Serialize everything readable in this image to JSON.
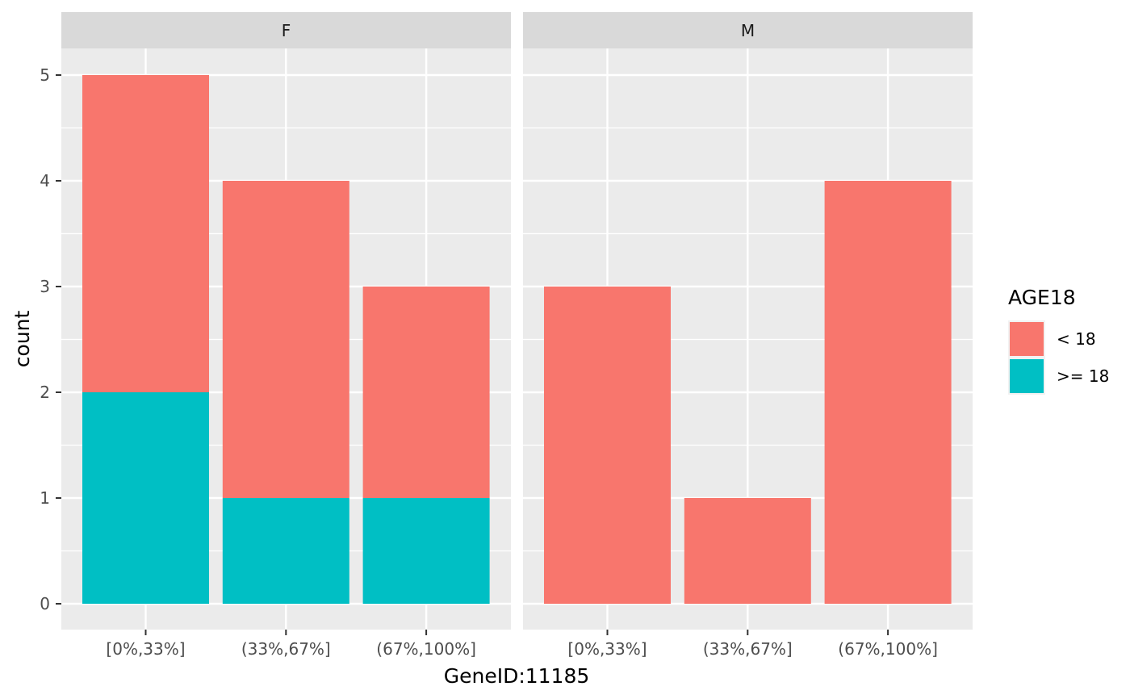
{
  "chart_data": {
    "type": "bar",
    "stacked": true,
    "facet_variable": "gender",
    "facets": [
      "F",
      "M"
    ],
    "categories": [
      "[0%,33%]",
      "(33%,67%]",
      "(67%,100%]"
    ],
    "xlabel": "GeneID:11185",
    "ylabel": "count",
    "ylim": [
      0,
      5.25
    ],
    "yticks": [
      0,
      1,
      2,
      3,
      4,
      5
    ],
    "grid": true,
    "legend": {
      "title": "AGE18",
      "placement": "right",
      "entries": [
        "< 18",
        ">= 18"
      ]
    },
    "series": [
      {
        "name": "< 18",
        "color": "#F8766D",
        "values": {
          "F": [
            3,
            3,
            2
          ],
          "M": [
            3,
            1,
            4
          ]
        }
      },
      {
        "name": ">= 18",
        "color": "#00BFC4",
        "values": {
          "F": [
            2,
            1,
            1
          ],
          "M": [
            0,
            0,
            0
          ]
        }
      }
    ]
  }
}
